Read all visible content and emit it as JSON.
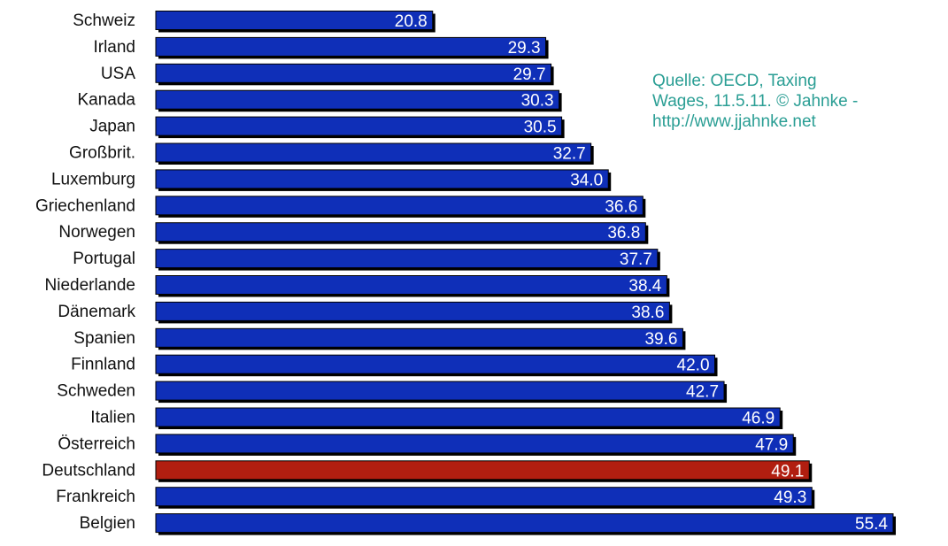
{
  "source_note": "Quelle: OECD, Taxing\nWages, 11.5.11. © Jahnke -\nhttp://www.jjahnke.net",
  "colors": {
    "bar": "#0f2fb8",
    "highlight_bar": "#b11e10",
    "bar_shadow": "#000000",
    "value_label": "#ffffff",
    "category_label": "#111111",
    "source_note": "#2a9e94"
  },
  "chart_data": {
    "type": "bar",
    "orientation": "horizontal",
    "categories": [
      "Schweiz",
      "Irland",
      "USA",
      "Kanada",
      "Japan",
      "Großbrit.",
      "Luxemburg",
      "Griechenland",
      "Norwegen",
      "Portugal",
      "Niederlande",
      "Dänemark",
      "Spanien",
      "Finnland",
      "Schweden",
      "Italien",
      "Österreich",
      "Deutschland",
      "Frankreich",
      "Belgien"
    ],
    "values": [
      20.8,
      29.3,
      29.7,
      30.3,
      30.5,
      32.7,
      34.0,
      36.6,
      36.8,
      37.7,
      38.4,
      38.6,
      39.6,
      42.0,
      42.7,
      46.9,
      47.9,
      49.1,
      49.3,
      55.4
    ],
    "value_labels": [
      "20.8",
      "29.3",
      "29.7",
      "30.3",
      "30.5",
      "32.7",
      "34.0",
      "36.6",
      "36.8",
      "37.7",
      "38.4",
      "38.6",
      "39.6",
      "42.0",
      "42.7",
      "46.9",
      "47.9",
      "49.1",
      "49.3",
      "55.4"
    ],
    "highlight_category": "Deutschland",
    "xlim": [
      0,
      55.4
    ],
    "title": "",
    "xlabel": "",
    "ylabel": ""
  }
}
